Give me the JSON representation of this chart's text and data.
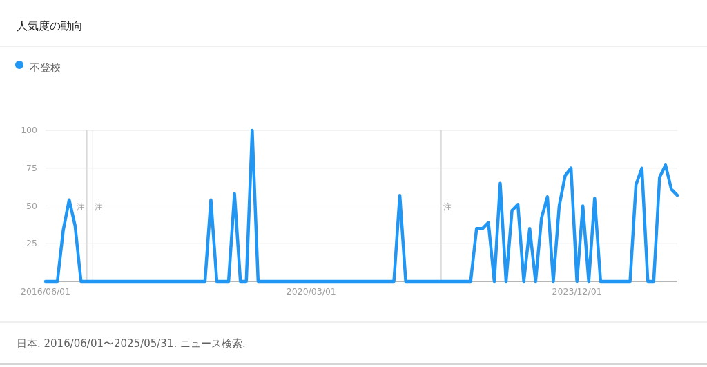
{
  "chart_data": {
    "type": "line",
    "title": "人気度の動向",
    "x": [
      "2016-06",
      "2016-07",
      "2016-08",
      "2016-09",
      "2016-10",
      "2016-11",
      "2016-12",
      "2017-01",
      "2017-02",
      "2017-03",
      "2017-04",
      "2017-05",
      "2017-06",
      "2017-07",
      "2017-08",
      "2017-09",
      "2017-10",
      "2017-11",
      "2017-12",
      "2018-01",
      "2018-02",
      "2018-03",
      "2018-04",
      "2018-05",
      "2018-06",
      "2018-07",
      "2018-08",
      "2018-09",
      "2018-10",
      "2018-11",
      "2018-12",
      "2019-01",
      "2019-02",
      "2019-03",
      "2019-04",
      "2019-05",
      "2019-06",
      "2019-07",
      "2019-08",
      "2019-09",
      "2019-10",
      "2019-11",
      "2019-12",
      "2020-01",
      "2020-02",
      "2020-03",
      "2020-04",
      "2020-05",
      "2020-06",
      "2020-07",
      "2020-08",
      "2020-09",
      "2020-10",
      "2020-11",
      "2020-12",
      "2021-01",
      "2021-02",
      "2021-03",
      "2021-04",
      "2021-05",
      "2021-06",
      "2021-07",
      "2021-08",
      "2021-09",
      "2021-10",
      "2021-11",
      "2021-12",
      "2022-01",
      "2022-02",
      "2022-03",
      "2022-04",
      "2022-05",
      "2022-06",
      "2022-07",
      "2022-08",
      "2022-09",
      "2022-10",
      "2022-11",
      "2022-12",
      "2023-01",
      "2023-02",
      "2023-03",
      "2023-04",
      "2023-05",
      "2023-06",
      "2023-07",
      "2023-08",
      "2023-09",
      "2023-10",
      "2023-11",
      "2023-12",
      "2024-01",
      "2024-02",
      "2024-03",
      "2024-04",
      "2024-05",
      "2024-06",
      "2024-07",
      "2024-08",
      "2024-09",
      "2024-10",
      "2024-11",
      "2024-12",
      "2025-01",
      "2025-02",
      "2025-03",
      "2025-04",
      "2025-05"
    ],
    "series": [
      {
        "name": "不登校",
        "color": "#2196f3",
        "values": [
          0,
          0,
          0,
          34,
          54,
          37,
          0,
          0,
          0,
          0,
          0,
          0,
          0,
          0,
          0,
          0,
          0,
          0,
          0,
          0,
          0,
          0,
          0,
          0,
          0,
          0,
          0,
          0,
          54,
          0,
          0,
          0,
          58,
          0,
          0,
          100,
          0,
          0,
          0,
          0,
          0,
          0,
          0,
          0,
          0,
          0,
          0,
          0,
          0,
          0,
          0,
          0,
          0,
          0,
          0,
          0,
          0,
          0,
          0,
          0,
          57,
          0,
          0,
          0,
          0,
          0,
          0,
          0,
          0,
          0,
          0,
          0,
          0,
          35,
          35,
          39,
          0,
          65,
          0,
          47,
          51,
          0,
          35,
          0,
          42,
          56,
          0,
          50,
          70,
          75,
          0,
          50,
          0,
          55,
          0,
          0,
          0,
          0,
          0,
          0,
          64,
          75,
          0,
          0,
          69,
          77,
          61,
          57
        ]
      }
    ],
    "xlim": [
      "2016-06",
      "2025-05"
    ],
    "xticks": [
      {
        "value": "2016-06",
        "label": "2016/06/01"
      },
      {
        "value": "2020-03",
        "label": "2020/03/01"
      },
      {
        "value": "2023-12",
        "label": "2023/12/01"
      }
    ],
    "ylim": [
      0,
      100
    ],
    "yticks": [
      {
        "value": 0,
        "label": null
      },
      25,
      50,
      75,
      100
    ],
    "grid": "y",
    "legend": "top left",
    "ref_lines": [
      {
        "axis": "x",
        "value": "2017-01",
        "label": "注"
      },
      {
        "axis": "x",
        "value": "2017-02",
        "label": "注"
      },
      {
        "axis": "x",
        "value": "2022-01",
        "label": "注"
      }
    ],
    "annotations": [
      "日本. 2016/06/01〜2025/05/31. ニュース検索."
    ]
  }
}
